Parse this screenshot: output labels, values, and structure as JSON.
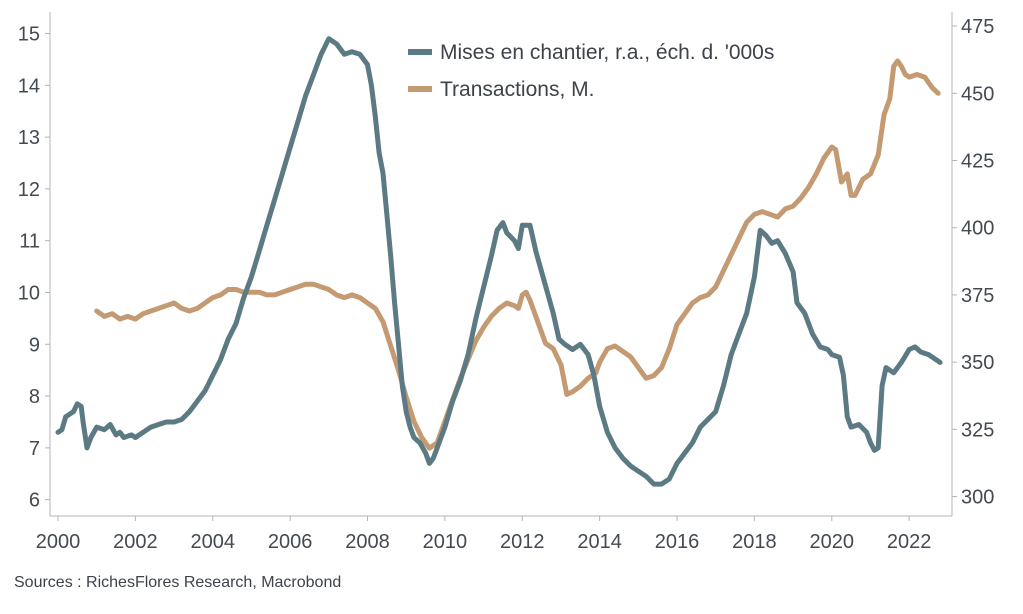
{
  "source_note": "Sources : RichesFlores Research, Macrobond",
  "chart_data": {
    "type": "line",
    "x_ticks": [
      "2000",
      "2002",
      "2004",
      "2006",
      "2008",
      "2010",
      "2012",
      "2014",
      "2016",
      "2018",
      "2020",
      "2022"
    ],
    "x_range": [
      2000,
      2022.9
    ],
    "y_left": {
      "ticks": [
        "6",
        "7",
        "8",
        "9",
        "10",
        "11",
        "12",
        "13",
        "14",
        "15"
      ],
      "range": [
        5.8,
        15.3
      ]
    },
    "y_right": {
      "ticks": [
        "300",
        "325",
        "350",
        "375",
        "400",
        "425",
        "450",
        "475"
      ],
      "range": [
        295,
        478
      ]
    },
    "grid": false,
    "legend_position": "top-right",
    "series": [
      {
        "name": "Mises en chantier, r.a., éch. d. '000s",
        "axis": "left",
        "color": "#5b7a84",
        "points": [
          [
            2000.0,
            7.3
          ],
          [
            2000.1,
            7.35
          ],
          [
            2000.2,
            7.6
          ],
          [
            2000.4,
            7.7
          ],
          [
            2000.5,
            7.85
          ],
          [
            2000.6,
            7.8
          ],
          [
            2000.65,
            7.5
          ],
          [
            2000.75,
            7.0
          ],
          [
            2000.85,
            7.2
          ],
          [
            2001.0,
            7.4
          ],
          [
            2001.2,
            7.35
          ],
          [
            2001.35,
            7.45
          ],
          [
            2001.5,
            7.25
          ],
          [
            2001.6,
            7.3
          ],
          [
            2001.7,
            7.2
          ],
          [
            2001.9,
            7.25
          ],
          [
            2002.0,
            7.2
          ],
          [
            2002.2,
            7.3
          ],
          [
            2002.4,
            7.4
          ],
          [
            2002.6,
            7.45
          ],
          [
            2002.8,
            7.5
          ],
          [
            2003.0,
            7.5
          ],
          [
            2003.2,
            7.55
          ],
          [
            2003.4,
            7.7
          ],
          [
            2003.6,
            7.9
          ],
          [
            2003.8,
            8.1
          ],
          [
            2004.0,
            8.4
          ],
          [
            2004.2,
            8.7
          ],
          [
            2004.4,
            9.1
          ],
          [
            2004.6,
            9.4
          ],
          [
            2004.8,
            9.9
          ],
          [
            2005.0,
            10.3
          ],
          [
            2005.2,
            10.8
          ],
          [
            2005.4,
            11.3
          ],
          [
            2005.6,
            11.8
          ],
          [
            2005.8,
            12.3
          ],
          [
            2006.0,
            12.8
          ],
          [
            2006.2,
            13.3
          ],
          [
            2006.4,
            13.8
          ],
          [
            2006.6,
            14.2
          ],
          [
            2006.8,
            14.6
          ],
          [
            2007.0,
            14.9
          ],
          [
            2007.2,
            14.8
          ],
          [
            2007.4,
            14.6
          ],
          [
            2007.6,
            14.65
          ],
          [
            2007.8,
            14.6
          ],
          [
            2008.0,
            14.4
          ],
          [
            2008.1,
            14.0
          ],
          [
            2008.2,
            13.4
          ],
          [
            2008.3,
            12.7
          ],
          [
            2008.4,
            12.3
          ],
          [
            2008.5,
            11.5
          ],
          [
            2008.6,
            10.7
          ],
          [
            2008.7,
            9.8
          ],
          [
            2008.8,
            9.0
          ],
          [
            2008.9,
            8.2
          ],
          [
            2009.0,
            7.7
          ],
          [
            2009.1,
            7.4
          ],
          [
            2009.2,
            7.2
          ],
          [
            2009.35,
            7.1
          ],
          [
            2009.5,
            6.9
          ],
          [
            2009.6,
            6.7
          ],
          [
            2009.7,
            6.8
          ],
          [
            2009.8,
            7.0
          ],
          [
            2009.9,
            7.2
          ],
          [
            2010.0,
            7.4
          ],
          [
            2010.2,
            7.9
          ],
          [
            2010.4,
            8.3
          ],
          [
            2010.6,
            8.8
          ],
          [
            2010.8,
            9.5
          ],
          [
            2011.0,
            10.1
          ],
          [
            2011.2,
            10.7
          ],
          [
            2011.35,
            11.2
          ],
          [
            2011.5,
            11.35
          ],
          [
            2011.6,
            11.15
          ],
          [
            2011.8,
            11.0
          ],
          [
            2011.9,
            10.85
          ],
          [
            2012.0,
            11.3
          ],
          [
            2012.2,
            11.3
          ],
          [
            2012.35,
            10.8
          ],
          [
            2012.5,
            10.4
          ],
          [
            2012.65,
            10.0
          ],
          [
            2012.8,
            9.6
          ],
          [
            2012.95,
            9.1
          ],
          [
            2013.1,
            9.0
          ],
          [
            2013.3,
            8.9
          ],
          [
            2013.5,
            9.0
          ],
          [
            2013.7,
            8.8
          ],
          [
            2013.85,
            8.4
          ],
          [
            2014.0,
            7.8
          ],
          [
            2014.2,
            7.3
          ],
          [
            2014.4,
            7.0
          ],
          [
            2014.6,
            6.8
          ],
          [
            2014.8,
            6.65
          ],
          [
            2015.0,
            6.55
          ],
          [
            2015.2,
            6.45
          ],
          [
            2015.4,
            6.3
          ],
          [
            2015.6,
            6.3
          ],
          [
            2015.8,
            6.4
          ],
          [
            2016.0,
            6.7
          ],
          [
            2016.2,
            6.9
          ],
          [
            2016.4,
            7.1
          ],
          [
            2016.6,
            7.4
          ],
          [
            2016.8,
            7.55
          ],
          [
            2017.0,
            7.7
          ],
          [
            2017.2,
            8.2
          ],
          [
            2017.4,
            8.8
          ],
          [
            2017.6,
            9.2
          ],
          [
            2017.8,
            9.6
          ],
          [
            2018.0,
            10.3
          ],
          [
            2018.15,
            11.2
          ],
          [
            2018.3,
            11.1
          ],
          [
            2018.45,
            10.95
          ],
          [
            2018.6,
            11.0
          ],
          [
            2018.8,
            10.75
          ],
          [
            2019.0,
            10.4
          ],
          [
            2019.1,
            9.8
          ],
          [
            2019.3,
            9.6
          ],
          [
            2019.5,
            9.2
          ],
          [
            2019.7,
            8.95
          ],
          [
            2019.9,
            8.9
          ],
          [
            2020.0,
            8.8
          ],
          [
            2020.2,
            8.75
          ],
          [
            2020.3,
            8.4
          ],
          [
            2020.4,
            7.6
          ],
          [
            2020.5,
            7.4
          ],
          [
            2020.7,
            7.45
          ],
          [
            2020.9,
            7.3
          ],
          [
            2021.0,
            7.1
          ],
          [
            2021.1,
            6.95
          ],
          [
            2021.2,
            7.0
          ],
          [
            2021.3,
            8.2
          ],
          [
            2021.4,
            8.55
          ],
          [
            2021.6,
            8.45
          ],
          [
            2021.8,
            8.65
          ],
          [
            2022.0,
            8.9
          ],
          [
            2022.15,
            8.95
          ],
          [
            2022.3,
            8.85
          ],
          [
            2022.5,
            8.8
          ],
          [
            2022.7,
            8.7
          ],
          [
            2022.8,
            8.65
          ]
        ]
      },
      {
        "name": "Transactions, M.",
        "axis": "right",
        "color": "#c49a72",
        "points": [
          [
            2001.0,
            369
          ],
          [
            2001.2,
            367
          ],
          [
            2001.4,
            368
          ],
          [
            2001.6,
            366
          ],
          [
            2001.8,
            367
          ],
          [
            2002.0,
            366
          ],
          [
            2002.2,
            368
          ],
          [
            2002.4,
            369
          ],
          [
            2002.6,
            370
          ],
          [
            2002.8,
            371
          ],
          [
            2003.0,
            372
          ],
          [
            2003.2,
            370
          ],
          [
            2003.4,
            369
          ],
          [
            2003.6,
            370
          ],
          [
            2003.8,
            372
          ],
          [
            2004.0,
            374
          ],
          [
            2004.2,
            375
          ],
          [
            2004.4,
            377
          ],
          [
            2004.6,
            377
          ],
          [
            2004.8,
            376
          ],
          [
            2005.0,
            376
          ],
          [
            2005.2,
            376
          ],
          [
            2005.4,
            375
          ],
          [
            2005.6,
            375
          ],
          [
            2005.8,
            376
          ],
          [
            2006.0,
            377
          ],
          [
            2006.2,
            378
          ],
          [
            2006.4,
            379
          ],
          [
            2006.6,
            379
          ],
          [
            2006.8,
            378
          ],
          [
            2007.0,
            377
          ],
          [
            2007.2,
            375
          ],
          [
            2007.4,
            374
          ],
          [
            2007.6,
            375
          ],
          [
            2007.8,
            374
          ],
          [
            2008.0,
            372
          ],
          [
            2008.2,
            370
          ],
          [
            2008.4,
            365
          ],
          [
            2008.6,
            356
          ],
          [
            2008.8,
            347
          ],
          [
            2009.0,
            337
          ],
          [
            2009.2,
            328
          ],
          [
            2009.4,
            322
          ],
          [
            2009.6,
            318
          ],
          [
            2009.8,
            320
          ],
          [
            2010.0,
            328
          ],
          [
            2010.2,
            336
          ],
          [
            2010.4,
            344
          ],
          [
            2010.6,
            351
          ],
          [
            2010.8,
            358
          ],
          [
            2011.0,
            363
          ],
          [
            2011.2,
            367
          ],
          [
            2011.4,
            370
          ],
          [
            2011.6,
            372
          ],
          [
            2011.8,
            371
          ],
          [
            2011.9,
            370
          ],
          [
            2012.0,
            375
          ],
          [
            2012.1,
            376
          ],
          [
            2012.2,
            373
          ],
          [
            2012.4,
            365
          ],
          [
            2012.6,
            357
          ],
          [
            2012.8,
            355
          ],
          [
            2013.0,
            349
          ],
          [
            2013.15,
            338
          ],
          [
            2013.3,
            339
          ],
          [
            2013.5,
            341
          ],
          [
            2013.7,
            344
          ],
          [
            2013.9,
            346
          ],
          [
            2014.0,
            350
          ],
          [
            2014.2,
            355
          ],
          [
            2014.4,
            356
          ],
          [
            2014.6,
            354
          ],
          [
            2014.8,
            352
          ],
          [
            2015.0,
            348
          ],
          [
            2015.2,
            344
          ],
          [
            2015.4,
            345
          ],
          [
            2015.6,
            348
          ],
          [
            2015.8,
            355
          ],
          [
            2016.0,
            364
          ],
          [
            2016.2,
            368
          ],
          [
            2016.4,
            372
          ],
          [
            2016.6,
            374
          ],
          [
            2016.8,
            375
          ],
          [
            2017.0,
            378
          ],
          [
            2017.2,
            384
          ],
          [
            2017.4,
            390
          ],
          [
            2017.6,
            396
          ],
          [
            2017.8,
            402
          ],
          [
            2018.0,
            405
          ],
          [
            2018.2,
            406
          ],
          [
            2018.4,
            405
          ],
          [
            2018.6,
            404
          ],
          [
            2018.8,
            407
          ],
          [
            2019.0,
            408
          ],
          [
            2019.2,
            411
          ],
          [
            2019.4,
            415
          ],
          [
            2019.6,
            420
          ],
          [
            2019.8,
            426
          ],
          [
            2020.0,
            430
          ],
          [
            2020.1,
            429
          ],
          [
            2020.25,
            417
          ],
          [
            2020.4,
            420
          ],
          [
            2020.5,
            412
          ],
          [
            2020.6,
            412
          ],
          [
            2020.8,
            418
          ],
          [
            2021.0,
            420
          ],
          [
            2021.2,
            427
          ],
          [
            2021.35,
            442
          ],
          [
            2021.5,
            448
          ],
          [
            2021.6,
            460
          ],
          [
            2021.7,
            462
          ],
          [
            2021.8,
            460
          ],
          [
            2021.9,
            457
          ],
          [
            2022.0,
            456
          ],
          [
            2022.2,
            457
          ],
          [
            2022.4,
            456
          ],
          [
            2022.6,
            452
          ],
          [
            2022.75,
            450
          ]
        ]
      }
    ]
  }
}
